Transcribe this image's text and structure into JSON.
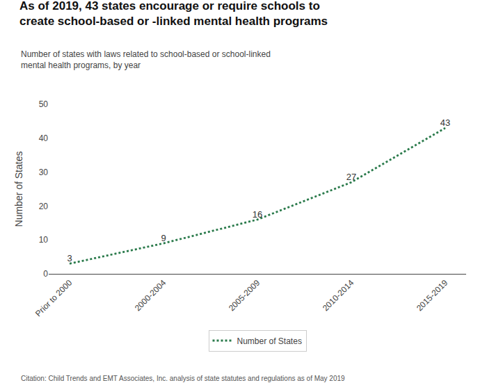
{
  "chart_data": {
    "type": "line",
    "title": "As of 2019, 43 states encourage or require schools to\ncreate school-based or -linked mental health programs",
    "subtitle": "Number of states with laws related to school-based or school-linked\nmental health programs, by year",
    "citation": "Citation: Child Trends and EMT Associates, Inc. analysis of state statutes and regulations as of May 2019",
    "categories": [
      "Prior to 2000",
      "2000-2004",
      "2005-2009",
      "2010-2014",
      "2015-2019"
    ],
    "series": [
      {
        "name": "Number of States",
        "color": "#2a7a4b",
        "line_style": "dotted",
        "values": [
          3,
          9,
          16,
          27,
          43
        ]
      }
    ],
    "ylabel": "Number of States",
    "ylim": [
      0,
      50
    ],
    "yticks": [
      0,
      10,
      20,
      30,
      40,
      50
    ],
    "grid": false,
    "legend": "bottom",
    "data_labels": true
  }
}
